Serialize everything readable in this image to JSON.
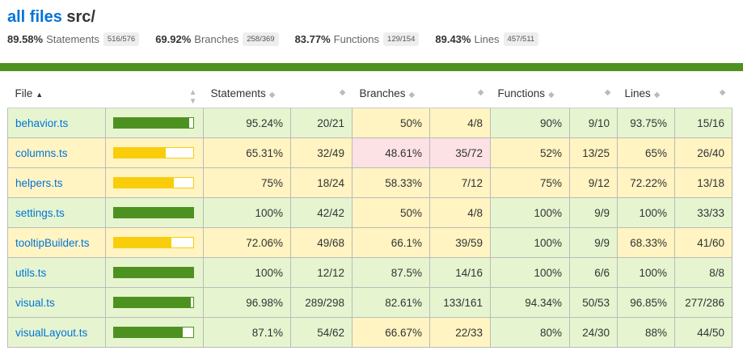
{
  "header": {
    "title_link": "all files",
    "title_path": "src/"
  },
  "summary": [
    {
      "pct": "89.58%",
      "label": "Statements",
      "frac": "516/576"
    },
    {
      "pct": "69.92%",
      "label": "Branches",
      "frac": "258/369"
    },
    {
      "pct": "83.77%",
      "label": "Functions",
      "frac": "129/154"
    },
    {
      "pct": "89.43%",
      "label": "Lines",
      "frac": "457/511"
    }
  ],
  "status_color": "#4d9221",
  "columns": {
    "file": "File",
    "statements": "Statements",
    "branches": "Branches",
    "functions": "Functions",
    "lines": "Lines"
  },
  "rows": [
    {
      "file": "behavior.ts",
      "bar": 0.9524,
      "bar_level": "high",
      "s_pct": "95.24%",
      "s_frac": "20/21",
      "s_level": "high",
      "b_pct": "50%",
      "b_frac": "4/8",
      "b_level": "medium",
      "f_pct": "90%",
      "f_frac": "9/10",
      "f_level": "high",
      "l_pct": "93.75%",
      "l_frac": "15/16",
      "l_level": "high"
    },
    {
      "file": "columns.ts",
      "bar": 0.6531,
      "bar_level": "medium",
      "s_pct": "65.31%",
      "s_frac": "32/49",
      "s_level": "medium",
      "b_pct": "48.61%",
      "b_frac": "35/72",
      "b_level": "low",
      "f_pct": "52%",
      "f_frac": "13/25",
      "f_level": "medium",
      "l_pct": "65%",
      "l_frac": "26/40",
      "l_level": "medium"
    },
    {
      "file": "helpers.ts",
      "bar": 0.75,
      "bar_level": "medium",
      "s_pct": "75%",
      "s_frac": "18/24",
      "s_level": "medium",
      "b_pct": "58.33%",
      "b_frac": "7/12",
      "b_level": "medium",
      "f_pct": "75%",
      "f_frac": "9/12",
      "f_level": "medium",
      "l_pct": "72.22%",
      "l_frac": "13/18",
      "l_level": "medium"
    },
    {
      "file": "settings.ts",
      "bar": 1.0,
      "bar_level": "high",
      "s_pct": "100%",
      "s_frac": "42/42",
      "s_level": "high",
      "b_pct": "50%",
      "b_frac": "4/8",
      "b_level": "medium",
      "f_pct": "100%",
      "f_frac": "9/9",
      "f_level": "high",
      "l_pct": "100%",
      "l_frac": "33/33",
      "l_level": "high"
    },
    {
      "file": "tooltipBuilder.ts",
      "bar": 0.7206,
      "bar_level": "medium",
      "s_pct": "72.06%",
      "s_frac": "49/68",
      "s_level": "medium",
      "b_pct": "66.1%",
      "b_frac": "39/59",
      "b_level": "medium",
      "f_pct": "100%",
      "f_frac": "9/9",
      "f_level": "high",
      "l_pct": "68.33%",
      "l_frac": "41/60",
      "l_level": "medium"
    },
    {
      "file": "utils.ts",
      "bar": 1.0,
      "bar_level": "high",
      "s_pct": "100%",
      "s_frac": "12/12",
      "s_level": "high",
      "b_pct": "87.5%",
      "b_frac": "14/16",
      "b_level": "high",
      "f_pct": "100%",
      "f_frac": "6/6",
      "f_level": "high",
      "l_pct": "100%",
      "l_frac": "8/8",
      "l_level": "high"
    },
    {
      "file": "visual.ts",
      "bar": 0.9698,
      "bar_level": "high",
      "s_pct": "96.98%",
      "s_frac": "289/298",
      "s_level": "high",
      "b_pct": "82.61%",
      "b_frac": "133/161",
      "b_level": "high",
      "f_pct": "94.34%",
      "f_frac": "50/53",
      "f_level": "high",
      "l_pct": "96.85%",
      "l_frac": "277/286",
      "l_level": "high"
    },
    {
      "file": "visualLayout.ts",
      "bar": 0.871,
      "bar_level": "high",
      "s_pct": "87.1%",
      "s_frac": "54/62",
      "s_level": "high",
      "b_pct": "66.67%",
      "b_frac": "22/33",
      "b_level": "medium",
      "f_pct": "80%",
      "f_frac": "24/30",
      "f_level": "high",
      "l_pct": "88%",
      "l_frac": "44/50",
      "l_level": "high"
    }
  ]
}
